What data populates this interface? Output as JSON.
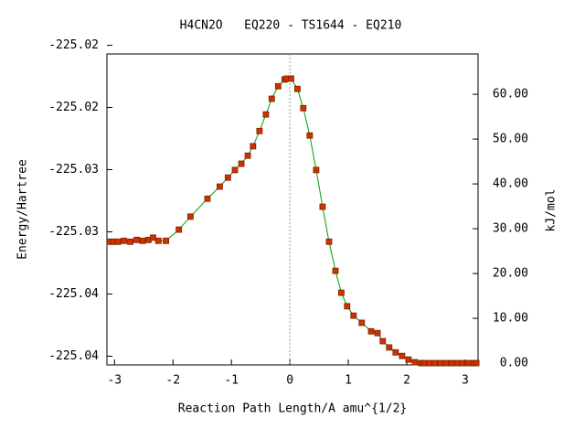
{
  "chart_data": {
    "type": "line",
    "title": "H4CN2O   EQ220 - TS1644 - EQ210",
    "xlabel": "Reaction Path Length/A amu^{1/2}",
    "ylabel": "Energy/Hartree",
    "y2label": "kJ/mol",
    "x": [
      -3.08,
      -3.02,
      -2.94,
      -2.84,
      -2.73,
      -2.62,
      -2.52,
      -2.42,
      -2.34,
      -2.25,
      -2.12,
      -1.9,
      -1.7,
      -1.41,
      -1.2,
      -1.06,
      -0.94,
      -0.83,
      -0.72,
      -0.63,
      -0.52,
      -0.41,
      -0.31,
      -0.2,
      -0.09,
      -0.05,
      0.02,
      0.13,
      0.23,
      0.34,
      0.45,
      0.56,
      0.67,
      0.78,
      0.88,
      0.98,
      1.09,
      1.23,
      1.39,
      1.5,
      1.59,
      1.7,
      1.81,
      1.92,
      2.03,
      2.14,
      2.25,
      2.3,
      2.39,
      2.48,
      2.58,
      2.67,
      2.77,
      2.86,
      2.95,
      3.05,
      3.14,
      3.19
    ],
    "series": [
      {
        "name": "energy",
        "axis": "y2",
        "color": "#00a000",
        "marker_color": "#cc3300",
        "values": [
          27.1,
          27.1,
          27.1,
          27.3,
          27.1,
          27.5,
          27.3,
          27.5,
          28.0,
          27.3,
          27.3,
          29.8,
          32.7,
          36.7,
          39.4,
          41.4,
          43.1,
          44.5,
          46.3,
          48.4,
          51.8,
          55.5,
          59.0,
          61.8,
          63.3,
          63.5,
          63.5,
          61.2,
          56.9,
          50.8,
          43.1,
          34.9,
          27.1,
          20.6,
          15.7,
          12.7,
          10.6,
          9.0,
          7.1,
          6.7,
          4.9,
          3.5,
          2.4,
          1.6,
          0.8,
          0.2,
          0,
          0,
          0,
          0,
          0,
          0,
          0,
          0,
          0,
          0,
          0,
          0
        ]
      }
    ],
    "xlim": [
      -3.13,
      3.22
    ],
    "xticks": [
      -3,
      -2,
      -1,
      0,
      1,
      2,
      3
    ],
    "ylim": [
      -225.0457,
      -225.0207
    ],
    "yticks": [
      {
        "value": -225.045,
        "label": "-225.04"
      },
      {
        "value": -225.04,
        "label": "-225.04"
      },
      {
        "value": -225.035,
        "label": "-225.03"
      },
      {
        "value": -225.03,
        "label": "-225.03"
      },
      {
        "value": -225.025,
        "label": "-225.02"
      },
      {
        "value": -225.02,
        "label": "-225.02"
      }
    ],
    "y2lim": [
      -0.4,
      69
    ],
    "y2ticks": [
      {
        "value": 0,
        "label": "0.00"
      },
      {
        "value": 10,
        "label": "10.00"
      },
      {
        "value": 20,
        "label": "20.00"
      },
      {
        "value": 30,
        "label": "30.00"
      },
      {
        "value": 40,
        "label": "40.00"
      },
      {
        "value": 50,
        "label": "50.00"
      },
      {
        "value": 60,
        "label": "60.00"
      }
    ]
  }
}
